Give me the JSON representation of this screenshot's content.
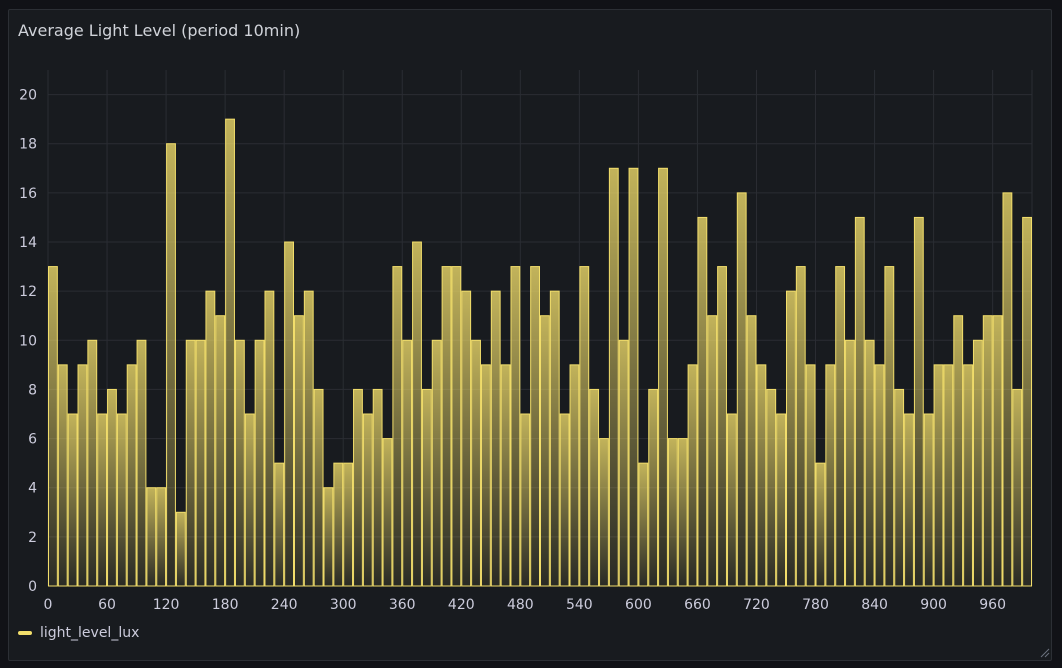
{
  "panel": {
    "title": "Average Light Level (period 10min)"
  },
  "legend": {
    "series_label": "light_level_lux",
    "color": "#f2de6b"
  },
  "chart_data": {
    "type": "bar",
    "title": "Average Light Level (period 10min)",
    "xlabel": "",
    "ylabel": "",
    "bin_width": 10,
    "x_ticks": [
      0,
      60,
      120,
      180,
      240,
      300,
      360,
      420,
      480,
      540,
      600,
      660,
      720,
      780,
      840,
      900,
      960
    ],
    "y_ticks": [
      0,
      2,
      4,
      6,
      8,
      10,
      12,
      14,
      16,
      18,
      20
    ],
    "xlim": [
      0,
      1000
    ],
    "ylim": [
      0,
      21
    ],
    "grid": true,
    "legend_position": "bottom-left",
    "series": [
      {
        "name": "light_level_lux",
        "color": "#f2de6b",
        "x": [
          0,
          10,
          20,
          30,
          40,
          50,
          60,
          70,
          80,
          90,
          100,
          110,
          120,
          130,
          140,
          150,
          160,
          170,
          180,
          190,
          200,
          210,
          220,
          230,
          240,
          250,
          260,
          270,
          280,
          290,
          300,
          310,
          320,
          330,
          340,
          350,
          360,
          370,
          380,
          390,
          400,
          410,
          420,
          430,
          440,
          450,
          460,
          470,
          480,
          490,
          500,
          510,
          520,
          530,
          540,
          550,
          560,
          570,
          580,
          590,
          600,
          610,
          620,
          630,
          640,
          650,
          660,
          670,
          680,
          690,
          700,
          710,
          720,
          730,
          740,
          750,
          760,
          770,
          780,
          790,
          800,
          810,
          820,
          830,
          840,
          850,
          860,
          870,
          880,
          890,
          900,
          910,
          920,
          930,
          940,
          950,
          960,
          970,
          980,
          990
        ],
        "values": [
          13,
          9,
          7,
          9,
          10,
          7,
          8,
          7,
          9,
          10,
          4,
          4,
          18,
          3,
          10,
          10,
          12,
          11,
          19,
          10,
          7,
          10,
          12,
          5,
          14,
          11,
          12,
          8,
          4,
          5,
          5,
          8,
          7,
          8,
          6,
          13,
          10,
          14,
          8,
          10,
          13,
          13,
          12,
          10,
          9,
          12,
          9,
          13,
          7,
          13,
          11,
          12,
          7,
          9,
          13,
          8,
          6,
          17,
          10,
          17,
          5,
          8,
          17,
          6,
          6,
          9,
          15,
          11,
          13,
          7,
          16,
          11,
          9,
          8,
          7,
          12,
          13,
          9,
          5,
          9,
          13,
          10,
          15,
          10,
          9,
          13,
          8,
          7,
          15,
          7,
          9,
          9,
          11,
          9,
          10,
          11,
          11,
          16,
          8,
          15
        ]
      }
    ]
  }
}
